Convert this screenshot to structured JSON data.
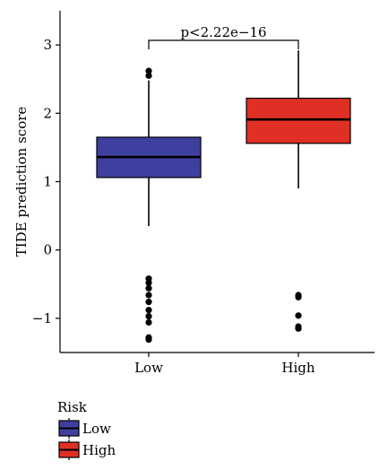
{
  "chart_data": {
    "type": "boxplot",
    "ylabel": "TIDE prediction score",
    "xlabel": "",
    "categories": [
      "Low",
      "High"
    ],
    "ylim": [
      -1.5,
      3.5
    ],
    "yticks": [
      -1,
      0,
      1,
      2,
      3
    ],
    "yticklabels": [
      "−1",
      "0",
      "1",
      "2",
      "3"
    ],
    "grid": false,
    "boxes": [
      {
        "group": "Low",
        "color": "#3f3f9f",
        "whisker_low": 0.35,
        "q1": 1.06,
        "median": 1.36,
        "q3": 1.65,
        "whisker_high": 2.48,
        "outliers": [
          2.62,
          2.55,
          -0.42,
          -0.48,
          -0.56,
          -0.66,
          -0.76,
          -0.88,
          -0.97,
          -1.06,
          -1.28,
          -1.31
        ]
      },
      {
        "group": "High",
        "color": "#e03025",
        "whisker_low": 0.9,
        "q1": 1.56,
        "median": 1.91,
        "q3": 2.22,
        "whisker_high": 2.92,
        "outliers": [
          -0.66,
          -0.69,
          -0.96,
          -1.12,
          -1.15
        ]
      }
    ],
    "annotation": {
      "text": "p<2.22e−16",
      "between": [
        "Low",
        "High"
      ]
    },
    "legend": {
      "title": "Risk",
      "items": [
        {
          "label": "Low",
          "color": "#3f3f9f"
        },
        {
          "label": "High",
          "color": "#e03025"
        }
      ],
      "placement": "bottom-left"
    }
  }
}
